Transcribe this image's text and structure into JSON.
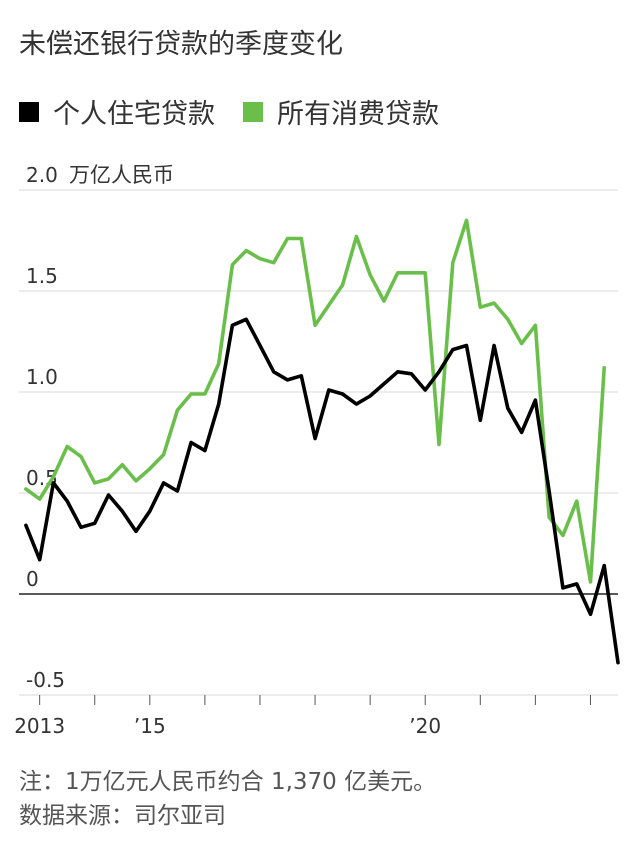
{
  "chart_data": {
    "type": "line",
    "title": "未偿还银行贷款的季度变化",
    "ylabel": "万亿人民币",
    "ylim": [
      -0.5,
      2.0
    ],
    "yticks": [
      {
        "value": 2.0,
        "label": "2.0"
      },
      {
        "value": 1.5,
        "label": "1.5"
      },
      {
        "value": 1.0,
        "label": "1.0"
      },
      {
        "value": 0.5,
        "label": "0.5"
      },
      {
        "value": 0,
        "label": "0"
      },
      {
        "value": -0.5,
        "label": "-0.5"
      }
    ],
    "xlim": [
      2012.625,
      2023.5
    ],
    "xticks": [
      2013,
      2014,
      2015,
      2016,
      2017,
      2018,
      2019,
      2020,
      2021,
      2022,
      2023
    ],
    "xlabels": [
      {
        "value": 2013,
        "label": "2013"
      },
      {
        "value": 2015,
        "label": "’15"
      },
      {
        "value": 2020,
        "label": "’20"
      }
    ],
    "grid": true,
    "legend_position": "top-left",
    "series": [
      {
        "name": "个人住宅贷款",
        "color": "#000000",
        "x": [
          2012.75,
          2013.0,
          2013.25,
          2013.5,
          2013.75,
          2014.0,
          2014.25,
          2014.5,
          2014.75,
          2015.0,
          2015.25,
          2015.5,
          2015.75,
          2016.0,
          2016.25,
          2016.5,
          2016.75,
          2017.0,
          2017.25,
          2017.5,
          2017.75,
          2018.0,
          2018.25,
          2018.5,
          2018.75,
          2019.0,
          2019.25,
          2019.5,
          2019.75,
          2020.0,
          2020.25,
          2020.5,
          2020.75,
          2021.0,
          2021.25,
          2021.5,
          2021.75,
          2022.0,
          2022.25,
          2022.5,
          2022.75,
          2023.0,
          2023.25
        ],
        "values": [
          0.34,
          0.17,
          0.55,
          0.46,
          0.33,
          0.35,
          0.49,
          0.41,
          0.31,
          0.41,
          0.55,
          0.51,
          0.75,
          0.71,
          0.94,
          1.33,
          1.36,
          1.23,
          1.1,
          1.06,
          1.08,
          0.77,
          1.01,
          0.99,
          0.94,
          0.98,
          1.04,
          1.1,
          1.09,
          1.01,
          1.1,
          1.21,
          1.23,
          0.86,
          1.23,
          0.92,
          0.8,
          0.96,
          0.51,
          0.03,
          0.05,
          -0.1,
          0.14
        ]
      },
      {
        "name": "所有消费贷款",
        "color": "#6abf4b",
        "x": [
          2012.75,
          2013.0,
          2013.25,
          2013.5,
          2013.75,
          2014.0,
          2014.25,
          2014.5,
          2014.75,
          2015.0,
          2015.25,
          2015.5,
          2015.75,
          2016.0,
          2016.25,
          2016.5,
          2016.75,
          2017.0,
          2017.25,
          2017.5,
          2017.75,
          2018.0,
          2018.25,
          2018.5,
          2018.75,
          2019.0,
          2019.25,
          2019.5,
          2019.75,
          2020.0,
          2020.25,
          2020.5,
          2020.75,
          2021.0,
          2021.25,
          2021.5,
          2021.75,
          2022.0,
          2022.25,
          2022.5,
          2022.75,
          2023.0,
          2023.25
        ],
        "values": [
          0.52,
          0.47,
          0.58,
          0.73,
          0.68,
          0.55,
          0.57,
          0.64,
          0.56,
          0.62,
          0.69,
          0.91,
          0.99,
          0.99,
          1.14,
          1.63,
          1.7,
          1.66,
          1.64,
          1.76,
          1.76,
          1.33,
          1.43,
          1.53,
          1.77,
          1.58,
          1.45,
          1.59,
          1.59,
          1.59,
          0.74,
          1.64,
          1.85,
          1.42,
          1.44,
          1.36,
          1.24,
          1.33,
          0.38,
          0.29,
          0.46,
          0.06,
          1.12
        ]
      }
    ]
  },
  "notes": {
    "conversion": "注：1万亿元人民币约合 1,370 亿美元。",
    "source": "数据来源：司尔亚司"
  }
}
